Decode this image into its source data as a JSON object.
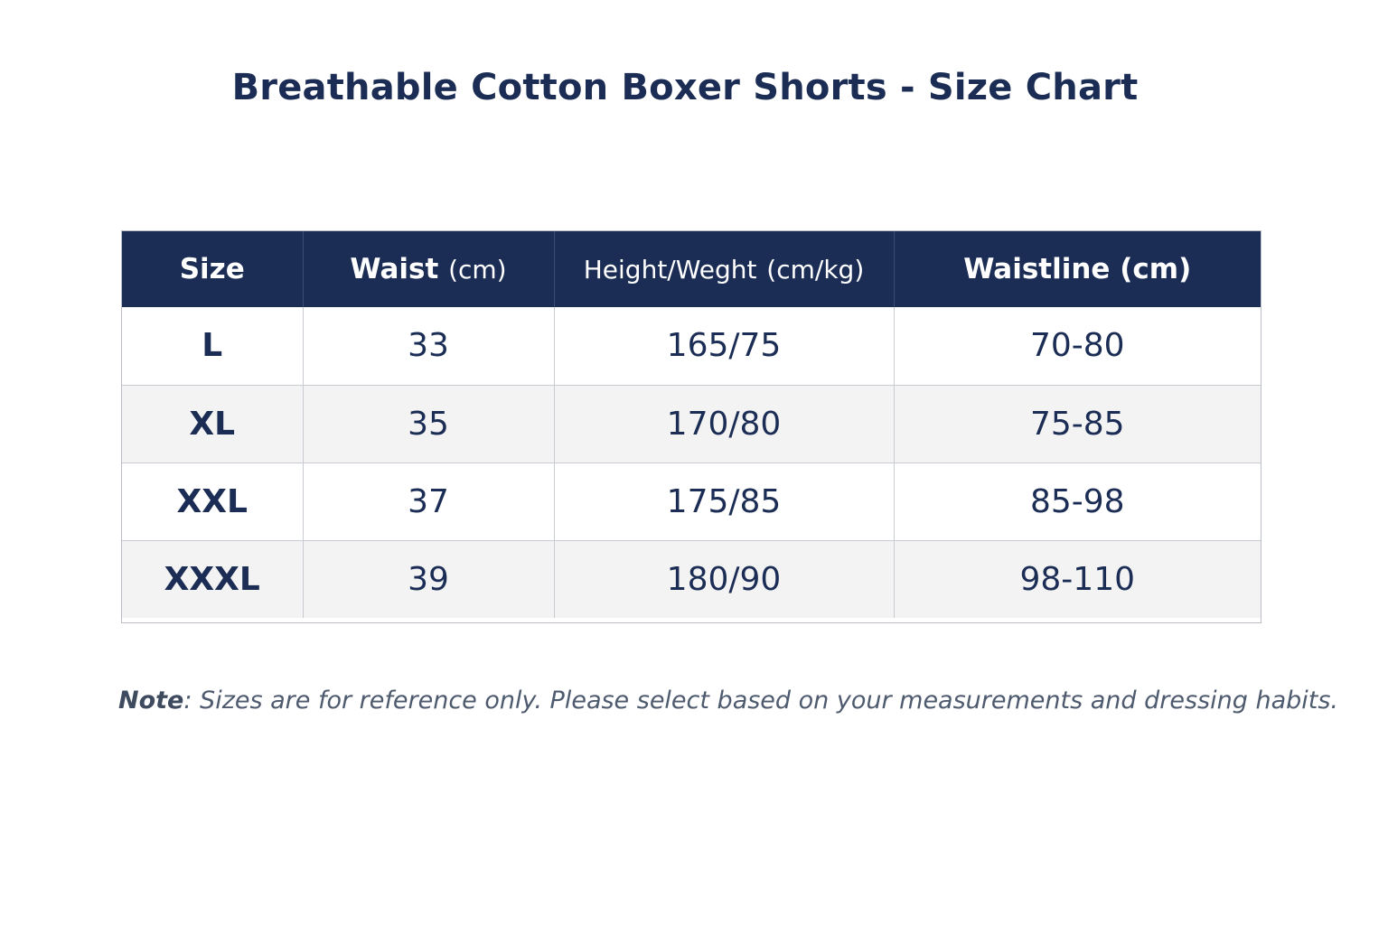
{
  "title": "Breathable Cotton Boxer Shorts - Size Chart",
  "table": {
    "headers": [
      {
        "main": "Size",
        "unit": ""
      },
      {
        "main": "Waist",
        "unit": "(cm)"
      },
      {
        "main": "Height/Weght",
        "unit": "(cm/kg)"
      },
      {
        "main": "Waistline",
        "unit": "(cm)"
      }
    ],
    "rows": [
      [
        "L",
        "33",
        "165/75",
        "70-80"
      ],
      [
        "XL",
        "35",
        "170/80",
        "75-85"
      ],
      [
        "XXL",
        "37",
        "175/85",
        "85-98"
      ],
      [
        "XXXL",
        "39",
        "180/90",
        "98-110"
      ]
    ]
  },
  "note": {
    "label": "Note",
    "text": ": Sizes are for reference only. Please select based on your measurements and dressing habits."
  },
  "colors": {
    "header_bg": "#1b2d54",
    "text": "#1b2d54",
    "stripe": "#f3f3f4"
  }
}
